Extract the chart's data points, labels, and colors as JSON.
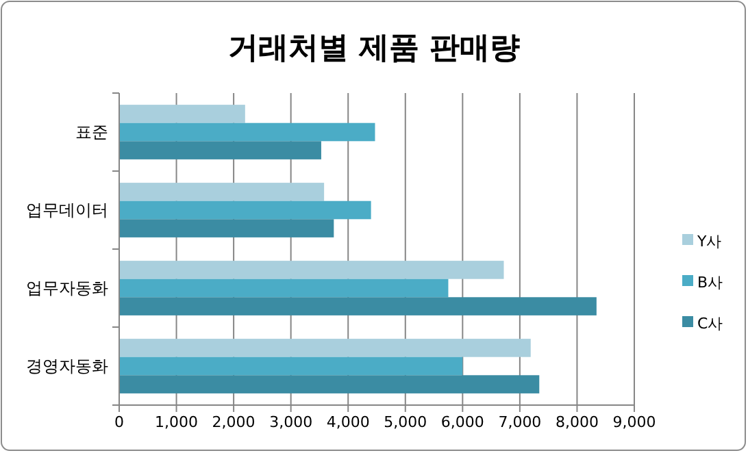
{
  "chart_data": {
    "type": "bar",
    "orientation": "horizontal",
    "title": "거래처별 제품 판매량",
    "categories": [
      "표준",
      "업무데이터",
      "업무자동화",
      "경영자동화"
    ],
    "series": [
      {
        "name": "Y사",
        "color": "#a9cfdd",
        "values": [
          2200,
          3580,
          6720,
          7190
        ]
      },
      {
        "name": "B사",
        "color": "#4bacc6",
        "values": [
          4470,
          4400,
          5750,
          6000
        ]
      },
      {
        "name": "C사",
        "color": "#3b8ca3",
        "values": [
          3530,
          3750,
          8340,
          7340
        ]
      }
    ],
    "xlim": [
      0,
      9000
    ],
    "xticks": [
      {
        "value": 0,
        "label": "0"
      },
      {
        "value": 1000,
        "label": "1,000"
      },
      {
        "value": 2000,
        "label": "2,000"
      },
      {
        "value": 3000,
        "label": "3,000"
      },
      {
        "value": 4000,
        "label": "4,000"
      },
      {
        "value": 5000,
        "label": "5,000"
      },
      {
        "value": 6000,
        "label": "6,000"
      },
      {
        "value": 7000,
        "label": "7,000"
      },
      {
        "value": 8000,
        "label": "8,000"
      },
      {
        "value": 9000,
        "label": "9,000"
      }
    ],
    "grid": "x",
    "legend": "right"
  }
}
